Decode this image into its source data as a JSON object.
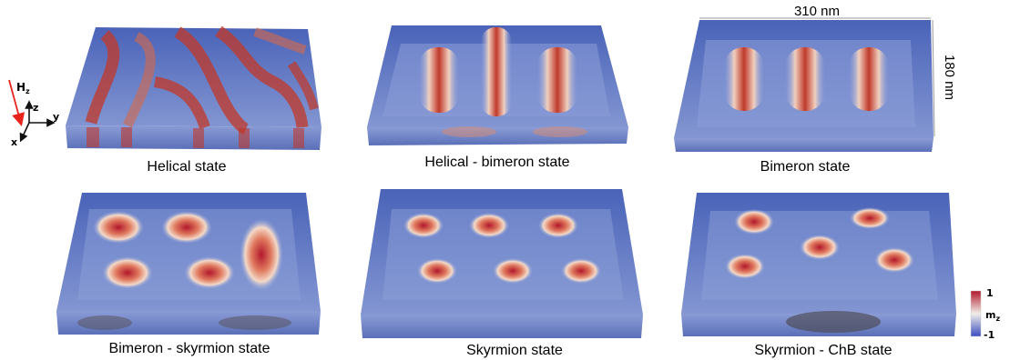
{
  "panels": [
    {
      "id": "helical",
      "caption": "Helical state"
    },
    {
      "id": "helical-bimeron",
      "caption": "Helical - bimeron state"
    },
    {
      "id": "bimeron",
      "caption": "Bimeron state"
    },
    {
      "id": "bimeron-skyrmion",
      "caption": "Bimeron - skyrmion state"
    },
    {
      "id": "skyrmion",
      "caption": "Skyrmion state"
    },
    {
      "id": "skyrmion-chb",
      "caption": "Skyrmion - ChB state"
    }
  ],
  "dimensions": {
    "width_label": "310 nm",
    "depth_label": "180 nm"
  },
  "axes": {
    "field_label": "H",
    "field_subscript": "z",
    "x_label": "x",
    "y_label": "y",
    "z_label": "z"
  },
  "colorbar": {
    "max_label": "1",
    "min_label": "-1",
    "quantity": "m",
    "quantity_subscript": "z",
    "max_color": "#b2182b",
    "mid_color": "#f0eee8",
    "min_color": "#3b4cc0"
  },
  "colors": {
    "field_arrow": "#e8231b"
  }
}
